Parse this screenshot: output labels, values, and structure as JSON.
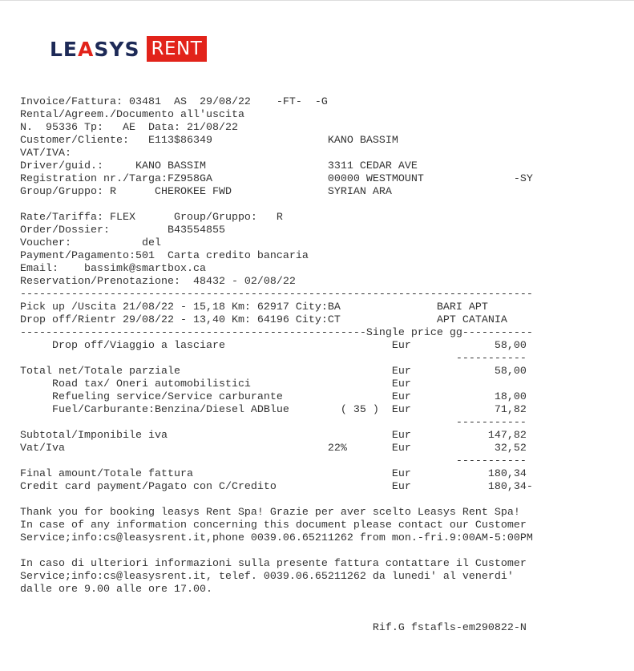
{
  "logo": {
    "brand_prefix": "LE",
    "brand_a": "A",
    "brand_suffix": "SYS",
    "badge": "RENT",
    "colors": {
      "navy": "#1d2a57",
      "red": "#e2231a"
    }
  },
  "lines": [
    {
      "name": "invoice-number",
      "text": "Invoice/Fattura: 03481  AS  29/08/22    -FT-  -G"
    },
    {
      "name": "rental-agreement",
      "text": "Rental/Agreem./Documento all'uscita"
    },
    {
      "name": "agreement-number",
      "text": "N.  95336 Tp:   AE  Data: 21/08/22"
    },
    {
      "name": "customer",
      "text": "Customer/Cliente:   E113$86349                  KANO BASSIM"
    },
    {
      "name": "vat",
      "text": "VAT/IVA:"
    },
    {
      "name": "driver",
      "text": "Driver/guid.:     KANO BASSIM                   3311 CEDAR AVE"
    },
    {
      "name": "registration",
      "text": "Registration nr./Targa:FZ958GA                  00000 WESTMOUNT              -SY"
    },
    {
      "name": "group",
      "text": "Group/Gruppo: R      CHEROKEE FWD               SYRIAN ARA"
    },
    {
      "name": "blank",
      "text": ""
    },
    {
      "name": "rate",
      "text": "Rate/Tariffa: FLEX      Group/Gruppo:   R"
    },
    {
      "name": "order",
      "text": "Order/Dossier:         B43554855"
    },
    {
      "name": "voucher",
      "text": "Voucher:           del"
    },
    {
      "name": "payment",
      "text": "Payment/Pagamento:501  Carta credito bancaria"
    },
    {
      "name": "email",
      "text": "Email:    bassimk@smartbox.ca"
    },
    {
      "name": "reservation",
      "text": "Reservation/Prenotazione:  48432 - 02/08/22"
    },
    {
      "name": "divider",
      "text": "--------------------------------------------------------------------------------"
    },
    {
      "name": "pickup",
      "text": "Pick up /Uscita 21/08/22 - 15,18 Km: 62917 City:BA               BARI APT"
    },
    {
      "name": "dropoff",
      "text": "Drop off/Rientr 29/08/22 - 13,40 Km: 64196 City:CT               APT CATANIA"
    },
    {
      "name": "price-header",
      "text": "------------------------------------------------------Single price gg-----------"
    },
    {
      "name": "item-drop-off",
      "text": "     Drop off/Viaggio a lasciare                          Eur             58,00"
    },
    {
      "name": "divider",
      "text": "                                                                    -----------"
    },
    {
      "name": "total-net",
      "text": "Total net/Totale parziale                                 Eur             58,00"
    },
    {
      "name": "item-road-tax",
      "text": "     Road tax/ Oneri automobilistici                      Eur"
    },
    {
      "name": "item-refueling",
      "text": "     Refueling service/Service carburante                 Eur             18,00"
    },
    {
      "name": "item-fuel",
      "text": "     Fuel/Carburante:Benzina/Diesel ADBlue        ( 35 )  Eur             71,82"
    },
    {
      "name": "divider",
      "text": "                                                                    -----------"
    },
    {
      "name": "subtotal",
      "text": "Subtotal/Imponibile iva                                   Eur            147,82"
    },
    {
      "name": "vat-amount",
      "text": "Vat/Iva                                         22%       Eur             32,52"
    },
    {
      "name": "divider",
      "text": "                                                                    -----------"
    },
    {
      "name": "final-amount",
      "text": "Final amount/Totale fattura                               Eur            180,34"
    },
    {
      "name": "credit-card-payment",
      "text": "Credit card payment/Pagato con C/Credito                  Eur            180,34-"
    },
    {
      "name": "blank",
      "text": ""
    },
    {
      "name": "thanks-en",
      "text": "Thank you for booking leasys Rent Spa! Grazie per aver scelto Leasys Rent Spa!"
    },
    {
      "name": "contact-en-1",
      "text": "In case of any information concerning this document please contact our Customer"
    },
    {
      "name": "contact-en-2",
      "text": "Service;info:cs@leasysrent.it,phone 0039.06.65211262 from mon.-fri.9:00AM-5:00PM"
    },
    {
      "name": "blank",
      "text": ""
    },
    {
      "name": "contact-it-1",
      "text": "In caso di ulteriori informazioni sulla presente fattura contattare il Customer"
    },
    {
      "name": "contact-it-2",
      "text": "Service;info:cs@leasysrent.it, telef. 0039.06.65211262 da lunedi' al venerdi'"
    },
    {
      "name": "contact-it-3",
      "text": "dalle ore 9.00 alle ore 17.00."
    },
    {
      "name": "blank",
      "text": ""
    },
    {
      "name": "blank",
      "text": ""
    },
    {
      "name": "reference",
      "text": "                                                       Rif.G fstafls-em290822-N"
    }
  ]
}
